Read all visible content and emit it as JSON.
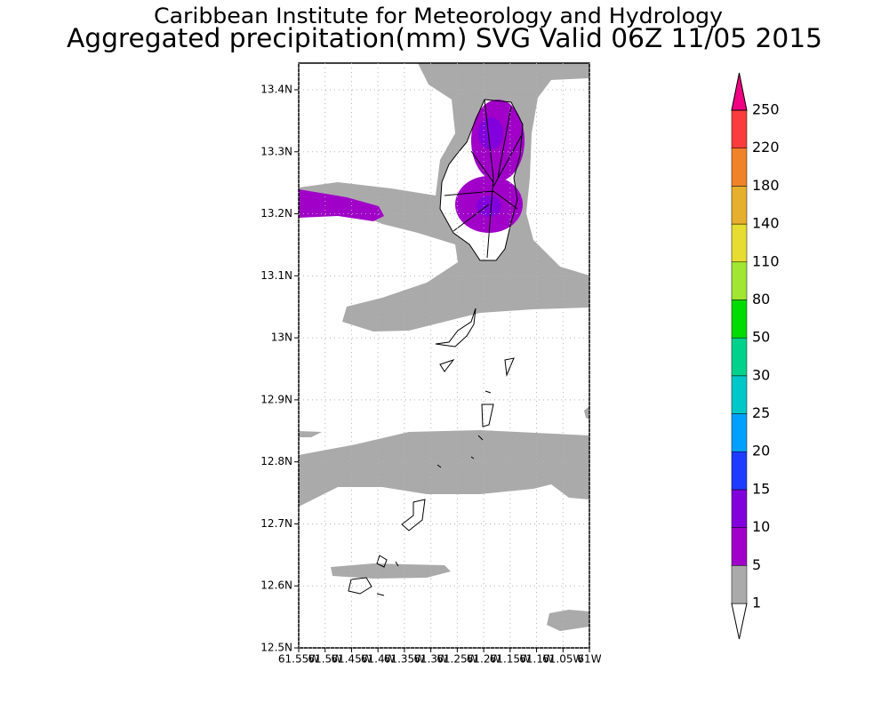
{
  "map": {
    "title": "Caribbean Institute for Meteorology and Hydrology",
    "subtitle": "Aggregated precipitation(mm) SVG Valid 06Z 11/05 2015",
    "xlim": [
      -61.55,
      -61.0
    ],
    "ylim": [
      12.5,
      13.443
    ],
    "yticks": [
      {
        "value": 12.5,
        "label": "12.5N"
      },
      {
        "value": 12.6,
        "label": "12.6N"
      },
      {
        "value": 12.7,
        "label": "12.7N"
      },
      {
        "value": 12.8,
        "label": "12.8N"
      },
      {
        "value": 12.9,
        "label": "12.9N"
      },
      {
        "value": 13.0,
        "label": "13N"
      },
      {
        "value": 13.1,
        "label": "13.1N"
      },
      {
        "value": 13.2,
        "label": "13.2N"
      },
      {
        "value": 13.3,
        "label": "13.3N"
      },
      {
        "value": 13.4,
        "label": "13.4N"
      }
    ],
    "xticks": [
      {
        "value": -61.55,
        "label": "61.55W"
      },
      {
        "value": -61.5,
        "label": "61.5W"
      },
      {
        "value": -61.45,
        "label": "61.45W"
      },
      {
        "value": -61.4,
        "label": "61.4W"
      },
      {
        "value": -61.35,
        "label": "61.35W"
      },
      {
        "value": -61.3,
        "label": "61.3W"
      },
      {
        "value": -61.25,
        "label": "61.25W"
      },
      {
        "value": -61.2,
        "label": "61.2W"
      },
      {
        "value": -61.15,
        "label": "61.15W"
      },
      {
        "value": -61.1,
        "label": "61.1W"
      },
      {
        "value": -61.05,
        "label": "61.05W"
      },
      {
        "value": -61.0,
        "label": "61W"
      }
    ],
    "colorbar": {
      "levels": [
        1,
        5,
        10,
        15,
        20,
        25,
        30,
        50,
        80,
        110,
        140,
        180,
        220,
        250
      ],
      "colors": [
        "#ffffff",
        "#aaaaaa",
        "#a000c8",
        "#8200dc",
        "#1e3cff",
        "#00a0ff",
        "#00c8c8",
        "#00d28c",
        "#00dc00",
        "#a0e632",
        "#e6dc32",
        "#e6af2d",
        "#f08228",
        "#fa3c3c",
        "#f00082"
      ]
    }
  }
}
